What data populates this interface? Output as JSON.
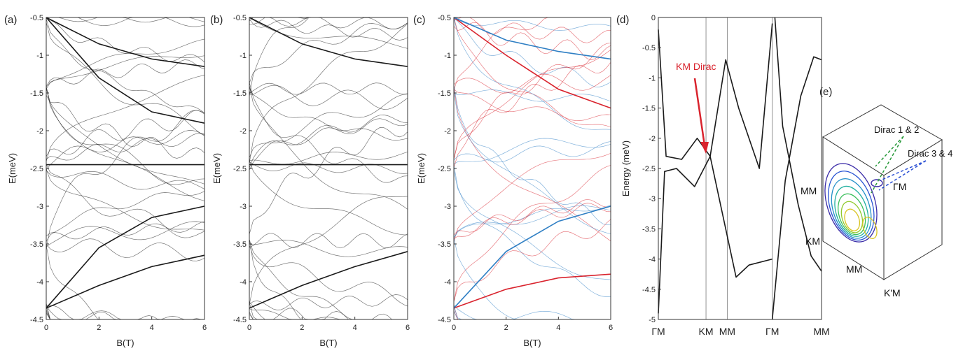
{
  "panels": [
    {
      "label": "(a)"
    },
    {
      "label": "(b)"
    },
    {
      "label": "(c)"
    },
    {
      "label": "(d)"
    },
    {
      "label": "(e)"
    }
  ],
  "colors": {
    "line": "#1a1a1a",
    "red": "#d9232d",
    "blue": "#2f7fc4",
    "dirac_green": "#2a9a3c",
    "dirac_blue": "#2a4fd4"
  },
  "chart_data": [
    {
      "type": "line",
      "panel": "(a)",
      "xlabel": "B(T)",
      "ylabel": "E(meV)",
      "xlim": [
        0,
        6
      ],
      "ylim": [
        -4.5,
        -0.5
      ],
      "xticks": [
        "0",
        "2",
        "4",
        "6"
      ],
      "yticks": [
        "-0.5",
        "-1",
        "-1.5",
        "-2",
        "-2.5",
        "-3",
        "-3.5",
        "-4",
        "-4.5"
      ],
      "series": [
        {
          "values": [
            [
              0,
              -0.5
            ],
            [
              2,
              -0.85
            ],
            [
              4,
              -1.05
            ],
            [
              6,
              -1.15
            ]
          ]
        },
        {
          "values": [
            [
              0,
              -0.5
            ],
            [
              2,
              -1.3
            ],
            [
              4,
              -1.75
            ],
            [
              6,
              -1.9
            ]
          ]
        },
        {
          "values": [
            [
              0,
              -2.45
            ],
            [
              2,
              -2.45
            ],
            [
              4,
              -2.45
            ],
            [
              6,
              -2.45
            ]
          ]
        },
        {
          "values": [
            [
              0,
              -4.35
            ],
            [
              2,
              -4.05
            ],
            [
              4,
              -3.8
            ],
            [
              6,
              -3.65
            ]
          ]
        },
        {
          "values": [
            [
              0,
              -4.35
            ],
            [
              2,
              -3.55
            ],
            [
              4,
              -3.15
            ],
            [
              6,
              -3.0
            ]
          ]
        }
      ]
    },
    {
      "type": "line",
      "panel": "(b)",
      "xlabel": "B(T)",
      "ylabel": "E(meV)",
      "xlim": [
        0,
        6
      ],
      "ylim": [
        -4.5,
        -0.5
      ],
      "xticks": [
        "0",
        "2",
        "4",
        "6"
      ],
      "yticks": [
        "-0.5",
        "-1",
        "-1.5",
        "-2",
        "-2.5",
        "-3",
        "-3.5",
        "-4",
        "-4.5"
      ],
      "series": [
        {
          "values": [
            [
              0,
              -0.5
            ],
            [
              2,
              -0.85
            ],
            [
              4,
              -1.05
            ],
            [
              6,
              -1.15
            ]
          ]
        },
        {
          "values": [
            [
              0,
              -2.45
            ],
            [
              2,
              -2.45
            ],
            [
              4,
              -2.45
            ],
            [
              6,
              -2.45
            ]
          ]
        },
        {
          "values": [
            [
              0,
              -4.35
            ],
            [
              2,
              -4.05
            ],
            [
              4,
              -3.8
            ],
            [
              6,
              -3.6
            ]
          ]
        }
      ]
    },
    {
      "type": "line",
      "panel": "(c)",
      "xlabel": "B(T)",
      "ylabel": "E(meV)",
      "xlim": [
        0,
        6
      ],
      "ylim": [
        -4.5,
        -0.5
      ],
      "xticks": [
        "0",
        "2",
        "4",
        "6"
      ],
      "yticks": [
        "-0.5",
        "-1",
        "-1.5",
        "-2",
        "-2.5",
        "-3",
        "-3.5",
        "-4",
        "-4.5"
      ],
      "series": [
        {
          "color": "#d9232d",
          "values": [
            [
              0,
              -0.5
            ],
            [
              2,
              -1.0
            ],
            [
              4,
              -1.45
            ],
            [
              6,
              -1.7
            ]
          ]
        },
        {
          "color": "#2f7fc4",
          "values": [
            [
              0,
              -0.5
            ],
            [
              2,
              -0.8
            ],
            [
              4,
              -0.95
            ],
            [
              6,
              -1.05
            ]
          ]
        },
        {
          "color": "#d9232d",
          "values": [
            [
              0,
              -4.35
            ],
            [
              2,
              -4.1
            ],
            [
              4,
              -3.95
            ],
            [
              6,
              -3.9
            ]
          ]
        },
        {
          "color": "#2f7fc4",
          "values": [
            [
              0,
              -4.35
            ],
            [
              2,
              -3.6
            ],
            [
              4,
              -3.2
            ],
            [
              6,
              -3.0
            ]
          ]
        }
      ]
    },
    {
      "type": "line",
      "panel": "(d)",
      "xlabel": "",
      "ylabel": "Energy (meV)",
      "ylim": [
        -5,
        0
      ],
      "xticks": [
        "ΓM",
        "KM",
        "MM",
        "ΓM",
        "MM"
      ],
      "yticks": [
        "0",
        "-0.5",
        "-1",
        "-1.5",
        "-2",
        "-2.5",
        "-3",
        "-3.5",
        "-4",
        "-4.5",
        "-5"
      ],
      "annotation": "KM Dirac",
      "series": [
        {
          "values": [
            [
              0,
              -0.2
            ],
            [
              0.15,
              -2.3
            ],
            [
              0.45,
              -2.35
            ],
            [
              0.75,
              -2.0
            ],
            [
              1.0,
              -2.3
            ],
            [
              1.3,
              -0.7
            ],
            [
              1.55,
              -1.5
            ],
            [
              1.95,
              -2.5
            ],
            [
              2.2,
              -0.1
            ]
          ]
        },
        {
          "values": [
            [
              0,
              -4.9
            ],
            [
              0.12,
              -2.55
            ],
            [
              0.35,
              -2.5
            ],
            [
              0.7,
              -2.8
            ],
            [
              1.0,
              -2.3
            ],
            [
              1.3,
              -3.5
            ],
            [
              1.5,
              -4.3
            ],
            [
              1.75,
              -4.1
            ],
            [
              2.2,
              -4.0
            ]
          ]
        },
        {
          "values": [
            [
              2.25,
              0
            ],
            [
              2.4,
              -1.8
            ],
            [
              2.7,
              -3.1
            ],
            [
              2.95,
              -3.95
            ],
            [
              3.15,
              -4.2
            ]
          ]
        },
        {
          "values": [
            [
              2.2,
              -5.0
            ],
            [
              2.45,
              -2.7
            ],
            [
              2.75,
              -1.3
            ],
            [
              3.0,
              -0.65
            ],
            [
              3.15,
              -0.7
            ]
          ]
        }
      ]
    },
    {
      "type": "heatmap",
      "panel": "(e)",
      "point_labels": [
        "MM",
        "KM",
        "MM",
        "K'M",
        "ΓM"
      ],
      "annotations": [
        "Dirac 1 & 2",
        "Dirac 3 & 4"
      ]
    }
  ]
}
